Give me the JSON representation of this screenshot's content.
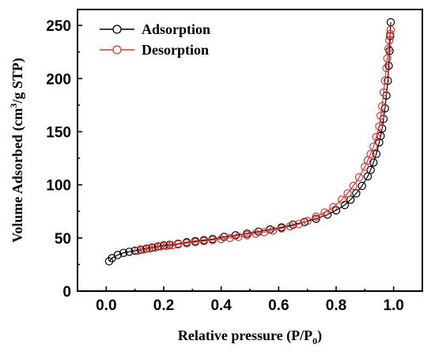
{
  "chart_data": {
    "type": "line",
    "xlabel": "Relative pressure (P/P0)",
    "xlabel_parts": {
      "main": "Relative pressure (P/P",
      "sub": "0",
      "end": ")"
    },
    "ylabel": "Volume Adsorbed (cm3/g STP)",
    "ylabel_parts": {
      "a": "Volume Adsorbed (cm",
      "sup": "3",
      "b": "/g STP)"
    },
    "xlim": [
      -0.1,
      1.1
    ],
    "ylim": [
      0,
      265
    ],
    "xticks": [
      0.0,
      0.2,
      0.4,
      0.6,
      0.8,
      1.0
    ],
    "xtick_labels": [
      "0.0",
      "0.2",
      "0.4",
      "0.6",
      "0.8",
      "1.0"
    ],
    "yticks": [
      0,
      50,
      100,
      150,
      200,
      250
    ],
    "ytick_labels": [
      "0",
      "50",
      "100",
      "150",
      "200",
      "250"
    ],
    "grid": false,
    "legend_position": "top-left",
    "series": [
      {
        "name": "Adsorption",
        "color": "#000000",
        "marker": "open-circle",
        "x": [
          0.01,
          0.02,
          0.04,
          0.06,
          0.08,
          0.1,
          0.12,
          0.14,
          0.16,
          0.18,
          0.2,
          0.22,
          0.25,
          0.28,
          0.31,
          0.34,
          0.37,
          0.41,
          0.45,
          0.49,
          0.53,
          0.57,
          0.61,
          0.65,
          0.69,
          0.73,
          0.77,
          0.8,
          0.83,
          0.85,
          0.87,
          0.89,
          0.91,
          0.92,
          0.93,
          0.94,
          0.95,
          0.955,
          0.96,
          0.965,
          0.97,
          0.975,
          0.98,
          0.983,
          0.986,
          0.988,
          0.99
        ],
        "y": [
          28,
          31,
          34,
          36,
          37,
          38,
          39,
          40,
          41,
          42,
          43,
          43.5,
          44.5,
          46,
          47,
          48,
          49,
          51,
          52.5,
          54,
          56,
          58,
          60,
          62.5,
          65,
          68,
          72,
          76,
          81,
          86,
          92,
          99,
          108,
          114,
          121,
          129,
          140,
          146,
          153,
          162,
          172,
          184,
          198,
          212,
          226,
          240,
          253
        ]
      },
      {
        "name": "Desorption",
        "color": "#e8302a",
        "marker": "open-circle",
        "x": [
          0.99,
          0.988,
          0.985,
          0.982,
          0.978,
          0.975,
          0.97,
          0.965,
          0.96,
          0.955,
          0.95,
          0.94,
          0.93,
          0.92,
          0.91,
          0.9,
          0.88,
          0.86,
          0.84,
          0.82,
          0.79,
          0.76,
          0.73,
          0.7,
          0.67,
          0.64,
          0.61,
          0.58,
          0.55,
          0.52,
          0.49,
          0.46,
          0.43,
          0.4,
          0.37,
          0.34,
          0.31,
          0.28,
          0.25,
          0.23,
          0.21,
          0.19,
          0.17,
          0.15,
          0.13,
          0.11
        ],
        "y": [
          246,
          242,
          236,
          228,
          219,
          210,
          198,
          187,
          174,
          165,
          155,
          145,
          136,
          129,
          123,
          117,
          107,
          99,
          92,
          86,
          79,
          74,
          70,
          66,
          63,
          61,
          59,
          57,
          55.5,
          54,
          52.5,
          51,
          50,
          49,
          48,
          47,
          46,
          45,
          44,
          43,
          42.5,
          42,
          41,
          40,
          39,
          38
        ]
      }
    ]
  }
}
